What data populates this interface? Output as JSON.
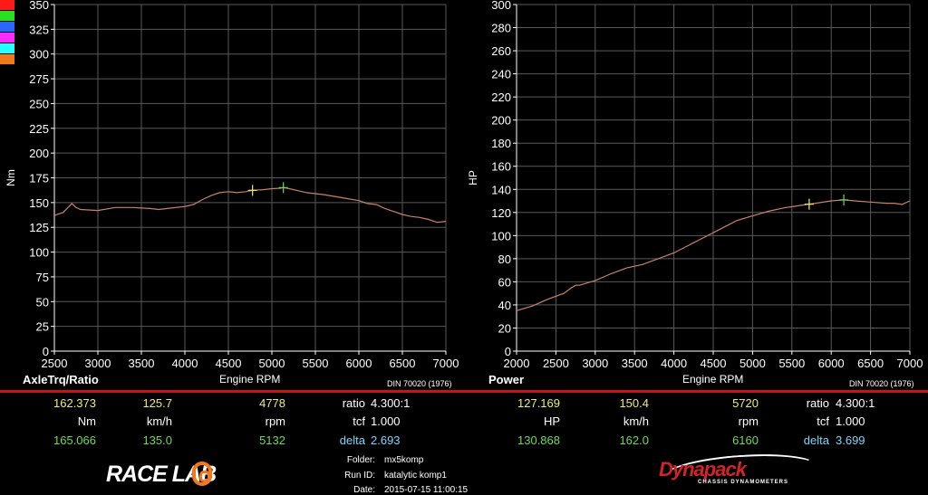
{
  "colors": {
    "curve": "#c8836a",
    "marker_yellow": "#f2ec73",
    "marker_green": "#6ddc55",
    "grid": "#5a5a5a",
    "separator": "#c8131c",
    "legend": [
      "#ff1a1a",
      "#26e026",
      "#2a66ff",
      "#ff2aff",
      "#2affff",
      "#f07a1a"
    ]
  },
  "chart_data": [
    {
      "type": "line",
      "ylabel": "Nm",
      "xlabel": "Engine RPM",
      "title": "AxleTrq/Ratio",
      "standard": "DIN 70020 (1976)",
      "xlim": [
        2500,
        7000
      ],
      "ylim": [
        0,
        350
      ],
      "x_ticks": [
        2500,
        3000,
        3500,
        4000,
        4500,
        5000,
        5500,
        6000,
        6500,
        7000
      ],
      "y_ticks": [
        0,
        25,
        50,
        75,
        100,
        125,
        150,
        175,
        200,
        225,
        250,
        275,
        300,
        325,
        350
      ],
      "series": [
        {
          "x": [
            2500,
            2600,
            2700,
            2750,
            2800,
            3000,
            3200,
            3400,
            3600,
            3700,
            3800,
            4000,
            4100,
            4200,
            4300,
            4400,
            4500,
            4600,
            4700,
            4778,
            4900,
            5000,
            5100,
            5132,
            5200,
            5300,
            5400,
            5500,
            5600,
            5800,
            6000,
            6100,
            6200,
            6300,
            6400,
            6500,
            6600,
            6700,
            6800,
            6900,
            7000
          ],
          "y": [
            137,
            140,
            149,
            145,
            143,
            142,
            145,
            145,
            144,
            143,
            144,
            146,
            148,
            153,
            157,
            160,
            161,
            160,
            161,
            162.4,
            163,
            164,
            164.5,
            165.1,
            164,
            162,
            160,
            159,
            158,
            155,
            152,
            149,
            148,
            144,
            141,
            138,
            136,
            135,
            133,
            130,
            131
          ]
        }
      ],
      "markers": [
        {
          "x": 4778,
          "y": 162.373,
          "color": "yellow"
        },
        {
          "x": 5132,
          "y": 165.066,
          "color": "green"
        }
      ]
    },
    {
      "type": "line",
      "ylabel": "HP",
      "xlabel": "Engine RPM",
      "title": "Power",
      "standard": "DIN 70020 (1976)",
      "xlim": [
        2000,
        7000
      ],
      "ylim": [
        0,
        300
      ],
      "x_ticks": [
        2000,
        2500,
        3000,
        3500,
        4000,
        4500,
        5000,
        5500,
        6000,
        6500,
        7000
      ],
      "y_ticks": [
        0,
        20,
        40,
        60,
        80,
        100,
        120,
        140,
        160,
        180,
        200,
        220,
        240,
        260,
        280,
        300
      ],
      "series": [
        {
          "x": [
            2000,
            2200,
            2400,
            2600,
            2700,
            2750,
            2800,
            3000,
            3200,
            3400,
            3600,
            3800,
            4000,
            4200,
            4400,
            4600,
            4800,
            5000,
            5200,
            5400,
            5600,
            5720,
            5800,
            6000,
            6160,
            6300,
            6500,
            6700,
            6800,
            6900,
            7000
          ],
          "y": [
            35,
            39,
            45,
            50,
            55,
            57,
            57,
            61,
            67,
            72,
            75,
            80,
            85,
            92,
            99,
            106,
            113,
            117,
            121,
            124,
            126,
            127.2,
            128,
            130,
            130.9,
            130,
            129,
            128,
            128,
            127,
            130
          ]
        }
      ],
      "markers": [
        {
          "x": 5720,
          "y": 127.169,
          "color": "yellow"
        },
        {
          "x": 6160,
          "y": 130.868,
          "color": "green"
        }
      ]
    }
  ],
  "left": {
    "title": "AxleTrq/Ratio",
    "xlabel": "Engine RPM",
    "standard": "DIN 70020 (1976)",
    "row1": {
      "a": "162.373",
      "b": "125.7",
      "c": "4778",
      "k": "ratio",
      "v": "4.300:1"
    },
    "row2": {
      "a": "Nm",
      "b": "km/h",
      "c": "rpm",
      "k": "tcf",
      "v": "1.000"
    },
    "row3": {
      "a": "165.066",
      "b": "135.0",
      "c": "5132",
      "k": "delta",
      "v": "2.693"
    }
  },
  "right": {
    "title": "Power",
    "xlabel": "Engine RPM",
    "standard": "DIN 70020 (1976)",
    "row1": {
      "a": "127.169",
      "b": "150.4",
      "c": "5720",
      "k": "ratio",
      "v": "4.300:1"
    },
    "row2": {
      "a": "HP",
      "b": "km/h",
      "c": "rpm",
      "k": "tcf",
      "v": "1.000"
    },
    "row3": {
      "a": "130.868",
      "b": "162.0",
      "c": "6160",
      "k": "delta",
      "v": "3.699"
    }
  },
  "meta": {
    "folder_label": "Folder:",
    "folder": "mx5komp",
    "run_label": "Run ID:",
    "run": "katalytic komp1",
    "date_label": "Date:",
    "date": "2015-07-15 11:00:15"
  },
  "logos": {
    "racelab": "RACE LAB",
    "dynapack": "Dynapack",
    "dynapack_sub": "CHASSIS DYNAMOMETERS"
  }
}
